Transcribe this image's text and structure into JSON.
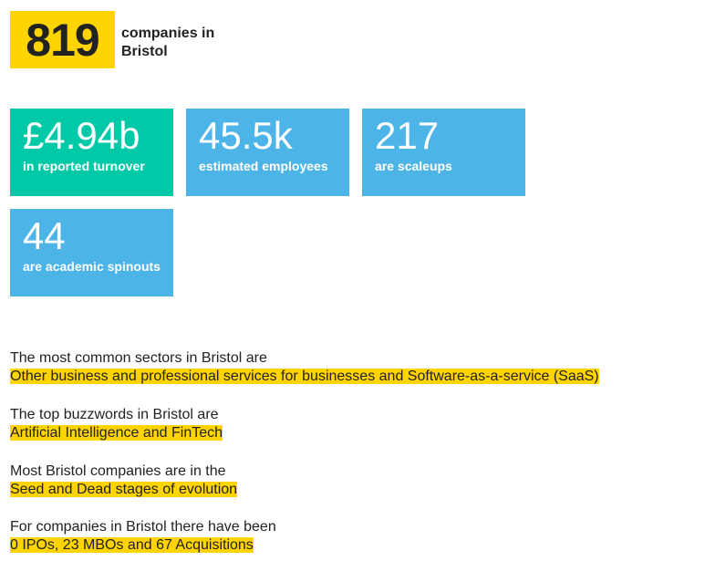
{
  "header": {
    "number": "819",
    "label": "companies in Bristol"
  },
  "stats": [
    {
      "value": "£4.94b",
      "label": "in reported turnover"
    },
    {
      "value": "45.5k",
      "label": "estimated employees"
    },
    {
      "value": "217",
      "label": "are scaleups"
    },
    {
      "value": "44",
      "label": "are academic spinouts"
    }
  ],
  "facts": [
    {
      "intro": "The most common sectors in Bristol are",
      "highlight": "Other business and professional services for businesses and Software-as-a-service (SaaS)"
    },
    {
      "intro": "The top buzzwords in Bristol are",
      "highlight": "Artificial Intelligence and FinTech"
    },
    {
      "intro": "Most Bristol companies are in the",
      "highlight": "Seed and Dead stages of evolution"
    },
    {
      "intro": "For companies in Bristol there have been",
      "highlight": "0 IPOs, 23 MBOs and 67 Acquisitions"
    }
  ]
}
